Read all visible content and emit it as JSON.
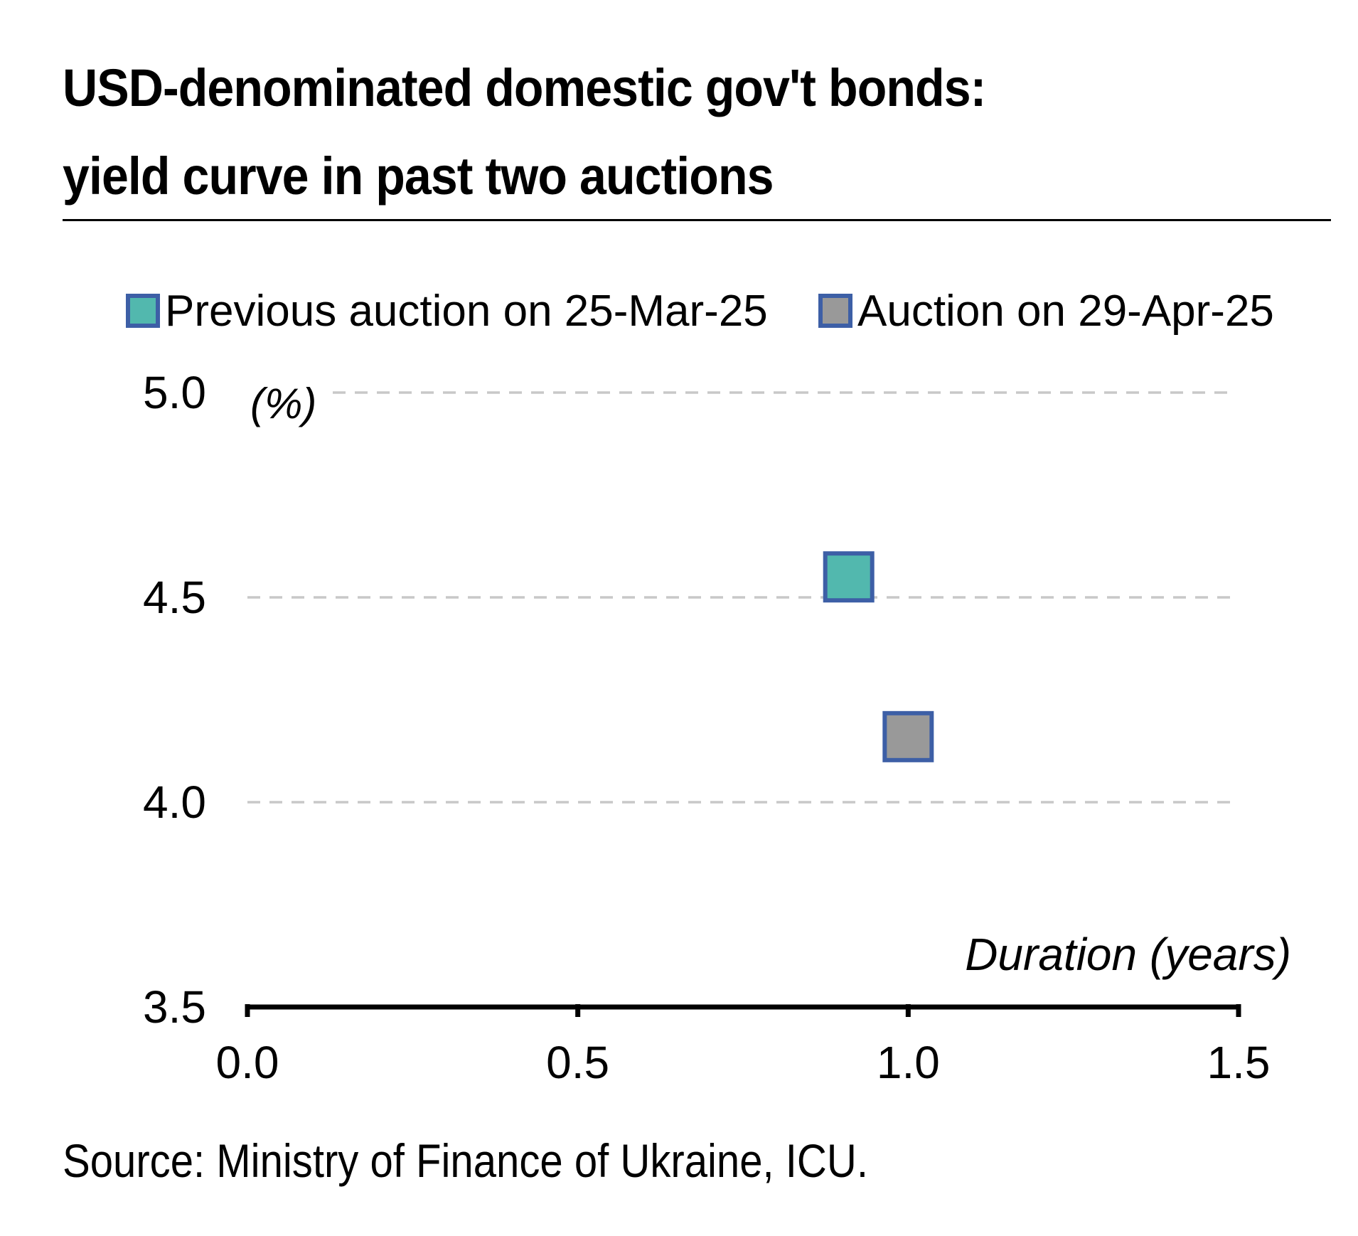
{
  "title_line1": "USD-denominated domestic gov't bonds:",
  "title_line2": "yield curve in past two auctions",
  "source": "Source: Ministry of Finance of Ukraine, ICU.",
  "chart_data": {
    "type": "scatter",
    "title": "USD-denominated domestic gov't bonds: yield curve in past two auctions",
    "ylabel": "(%)",
    "xlabel": "Duration (years)",
    "xlim": [
      0.0,
      1.5
    ],
    "ylim": [
      3.5,
      5.0
    ],
    "xticks": [
      "0.0",
      "0.5",
      "1.0",
      "1.5"
    ],
    "yticks": [
      "3.5",
      "4.0",
      "4.5",
      "5.0"
    ],
    "grid": "horizontal dashed",
    "legend_position": "top",
    "series": [
      {
        "name": "Previous auction on 25-Mar-25",
        "color": "#52b8ae",
        "border": "#3d5fa6",
        "points": [
          {
            "x": 0.91,
            "y": 4.55
          }
        ]
      },
      {
        "name": "Auction on 29-Apr-25",
        "color": "#999999",
        "border": "#3d5fa6",
        "points": [
          {
            "x": 1.0,
            "y": 4.16
          }
        ]
      }
    ]
  }
}
